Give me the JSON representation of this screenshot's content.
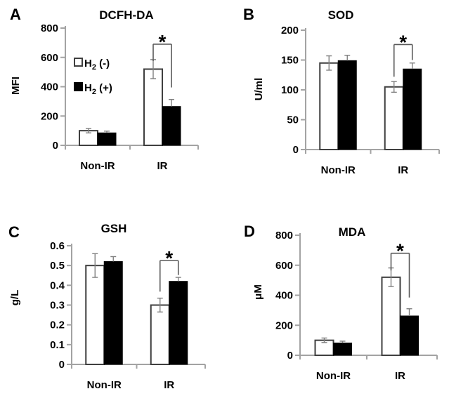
{
  "colors": {
    "background": "#ffffff",
    "text": "#000000",
    "axis": "#a3a3a3",
    "bar_outline": "#3f3f3f",
    "bar_open_fill": "#ffffff",
    "bar_filled_fill": "#000000",
    "error_bar": "#7f7f7f",
    "bracket": "#595959"
  },
  "chart_data": [
    {
      "type": "bar",
      "panel_label": "A",
      "title": "DCFH-DA",
      "ylabel": "MFI",
      "xlabel": "",
      "ylim": [
        0,
        800
      ],
      "grid": false,
      "yticks": [
        {
          "value": 0,
          "label": "0"
        },
        {
          "value": 200,
          "label": "200"
        },
        {
          "value": 400,
          "label": "400"
        },
        {
          "value": 600,
          "label": "600"
        },
        {
          "value": 800,
          "label": "800"
        }
      ],
      "categories": [
        "Non-IR",
        "IR"
      ],
      "series": [
        {
          "name": "H2 (-)",
          "style": "open",
          "values": [
            100,
            520
          ],
          "errors": [
            15,
            65
          ]
        },
        {
          "name": "H2 (+)",
          "style": "filled",
          "values": [
            85,
            265
          ],
          "errors": [
            12,
            48
          ]
        }
      ],
      "significance": {
        "label": "*",
        "category": "IR",
        "bracket_top": 690,
        "left_leg_end": 575,
        "right_leg_end": 395
      },
      "legend": {
        "show": true,
        "position": "inside-upper-left",
        "entries": [
          {
            "symbol": "open-square",
            "base": "H",
            "sub": "2",
            "rest": " (-)"
          },
          {
            "symbol": "filled-square",
            "base": "H",
            "sub": "2",
            "rest": " (+)"
          }
        ]
      }
    },
    {
      "type": "bar",
      "panel_label": "B",
      "title": "SOD",
      "ylabel": "U/ml",
      "xlabel": "",
      "ylim": [
        0,
        200
      ],
      "grid": false,
      "yticks": [
        {
          "value": 0,
          "label": "0"
        },
        {
          "value": 50,
          "label": "50"
        },
        {
          "value": 100,
          "label": "100"
        },
        {
          "value": 150,
          "label": "150"
        },
        {
          "value": 200,
          "label": "200"
        }
      ],
      "categories": [
        "Non-IR",
        "IR"
      ],
      "series": [
        {
          "name": "H2 (-)",
          "style": "open",
          "values": [
            145,
            105
          ],
          "errors": [
            12,
            9
          ]
        },
        {
          "name": "H2 (+)",
          "style": "filled",
          "values": [
            149,
            135
          ],
          "errors": [
            9,
            10
          ]
        }
      ],
      "significance": {
        "label": "*",
        "category": "IR",
        "bracket_top": 176,
        "left_leg_end": 122,
        "right_leg_end": 150
      },
      "legend": {
        "show": false
      }
    },
    {
      "type": "bar",
      "panel_label": "C",
      "title": "GSH",
      "ylabel": "g/L",
      "xlabel": "",
      "ylim": [
        0,
        0.6
      ],
      "grid": false,
      "yticks": [
        {
          "value": 0,
          "label": "0"
        },
        {
          "value": 0.1,
          "label": "0.1"
        },
        {
          "value": 0.2,
          "label": "0.2"
        },
        {
          "value": 0.3,
          "label": "0.3"
        },
        {
          "value": 0.4,
          "label": "0.4"
        },
        {
          "value": 0.5,
          "label": "0.5"
        },
        {
          "value": 0.6,
          "label": "0.6"
        }
      ],
      "categories": [
        "Non-IR",
        "IR"
      ],
      "series": [
        {
          "name": "H2 (-)",
          "style": "open",
          "values": [
            0.5,
            0.3
          ],
          "errors": [
            0.06,
            0.035
          ]
        },
        {
          "name": "H2 (+)",
          "style": "filled",
          "values": [
            0.52,
            0.42
          ],
          "errors": [
            0.025,
            0.02
          ]
        }
      ],
      "significance": {
        "label": "*",
        "category": "IR",
        "bracket_top": 0.525,
        "left_leg_end": 0.368,
        "right_leg_end": 0.452
      },
      "legend": {
        "show": false
      }
    },
    {
      "type": "bar",
      "panel_label": "D",
      "title": "MDA",
      "ylabel": "μM",
      "xlabel": "",
      "ylim": [
        0,
        800
      ],
      "grid": false,
      "yticks": [
        {
          "value": 0,
          "label": "0"
        },
        {
          "value": 200,
          "label": "200"
        },
        {
          "value": 400,
          "label": "400"
        },
        {
          "value": 600,
          "label": "600"
        },
        {
          "value": 800,
          "label": "800"
        }
      ],
      "categories": [
        "Non-IR",
        "IR"
      ],
      "series": [
        {
          "name": "H2 (-)",
          "style": "open",
          "values": [
            100,
            520
          ],
          "errors": [
            15,
            62
          ]
        },
        {
          "name": "H2 (+)",
          "style": "filled",
          "values": [
            82,
            262
          ],
          "errors": [
            12,
            48
          ]
        }
      ],
      "significance": {
        "label": "*",
        "category": "IR",
        "bracket_top": 680,
        "left_leg_end": 565,
        "right_leg_end": 385
      },
      "legend": {
        "show": false
      }
    }
  ]
}
